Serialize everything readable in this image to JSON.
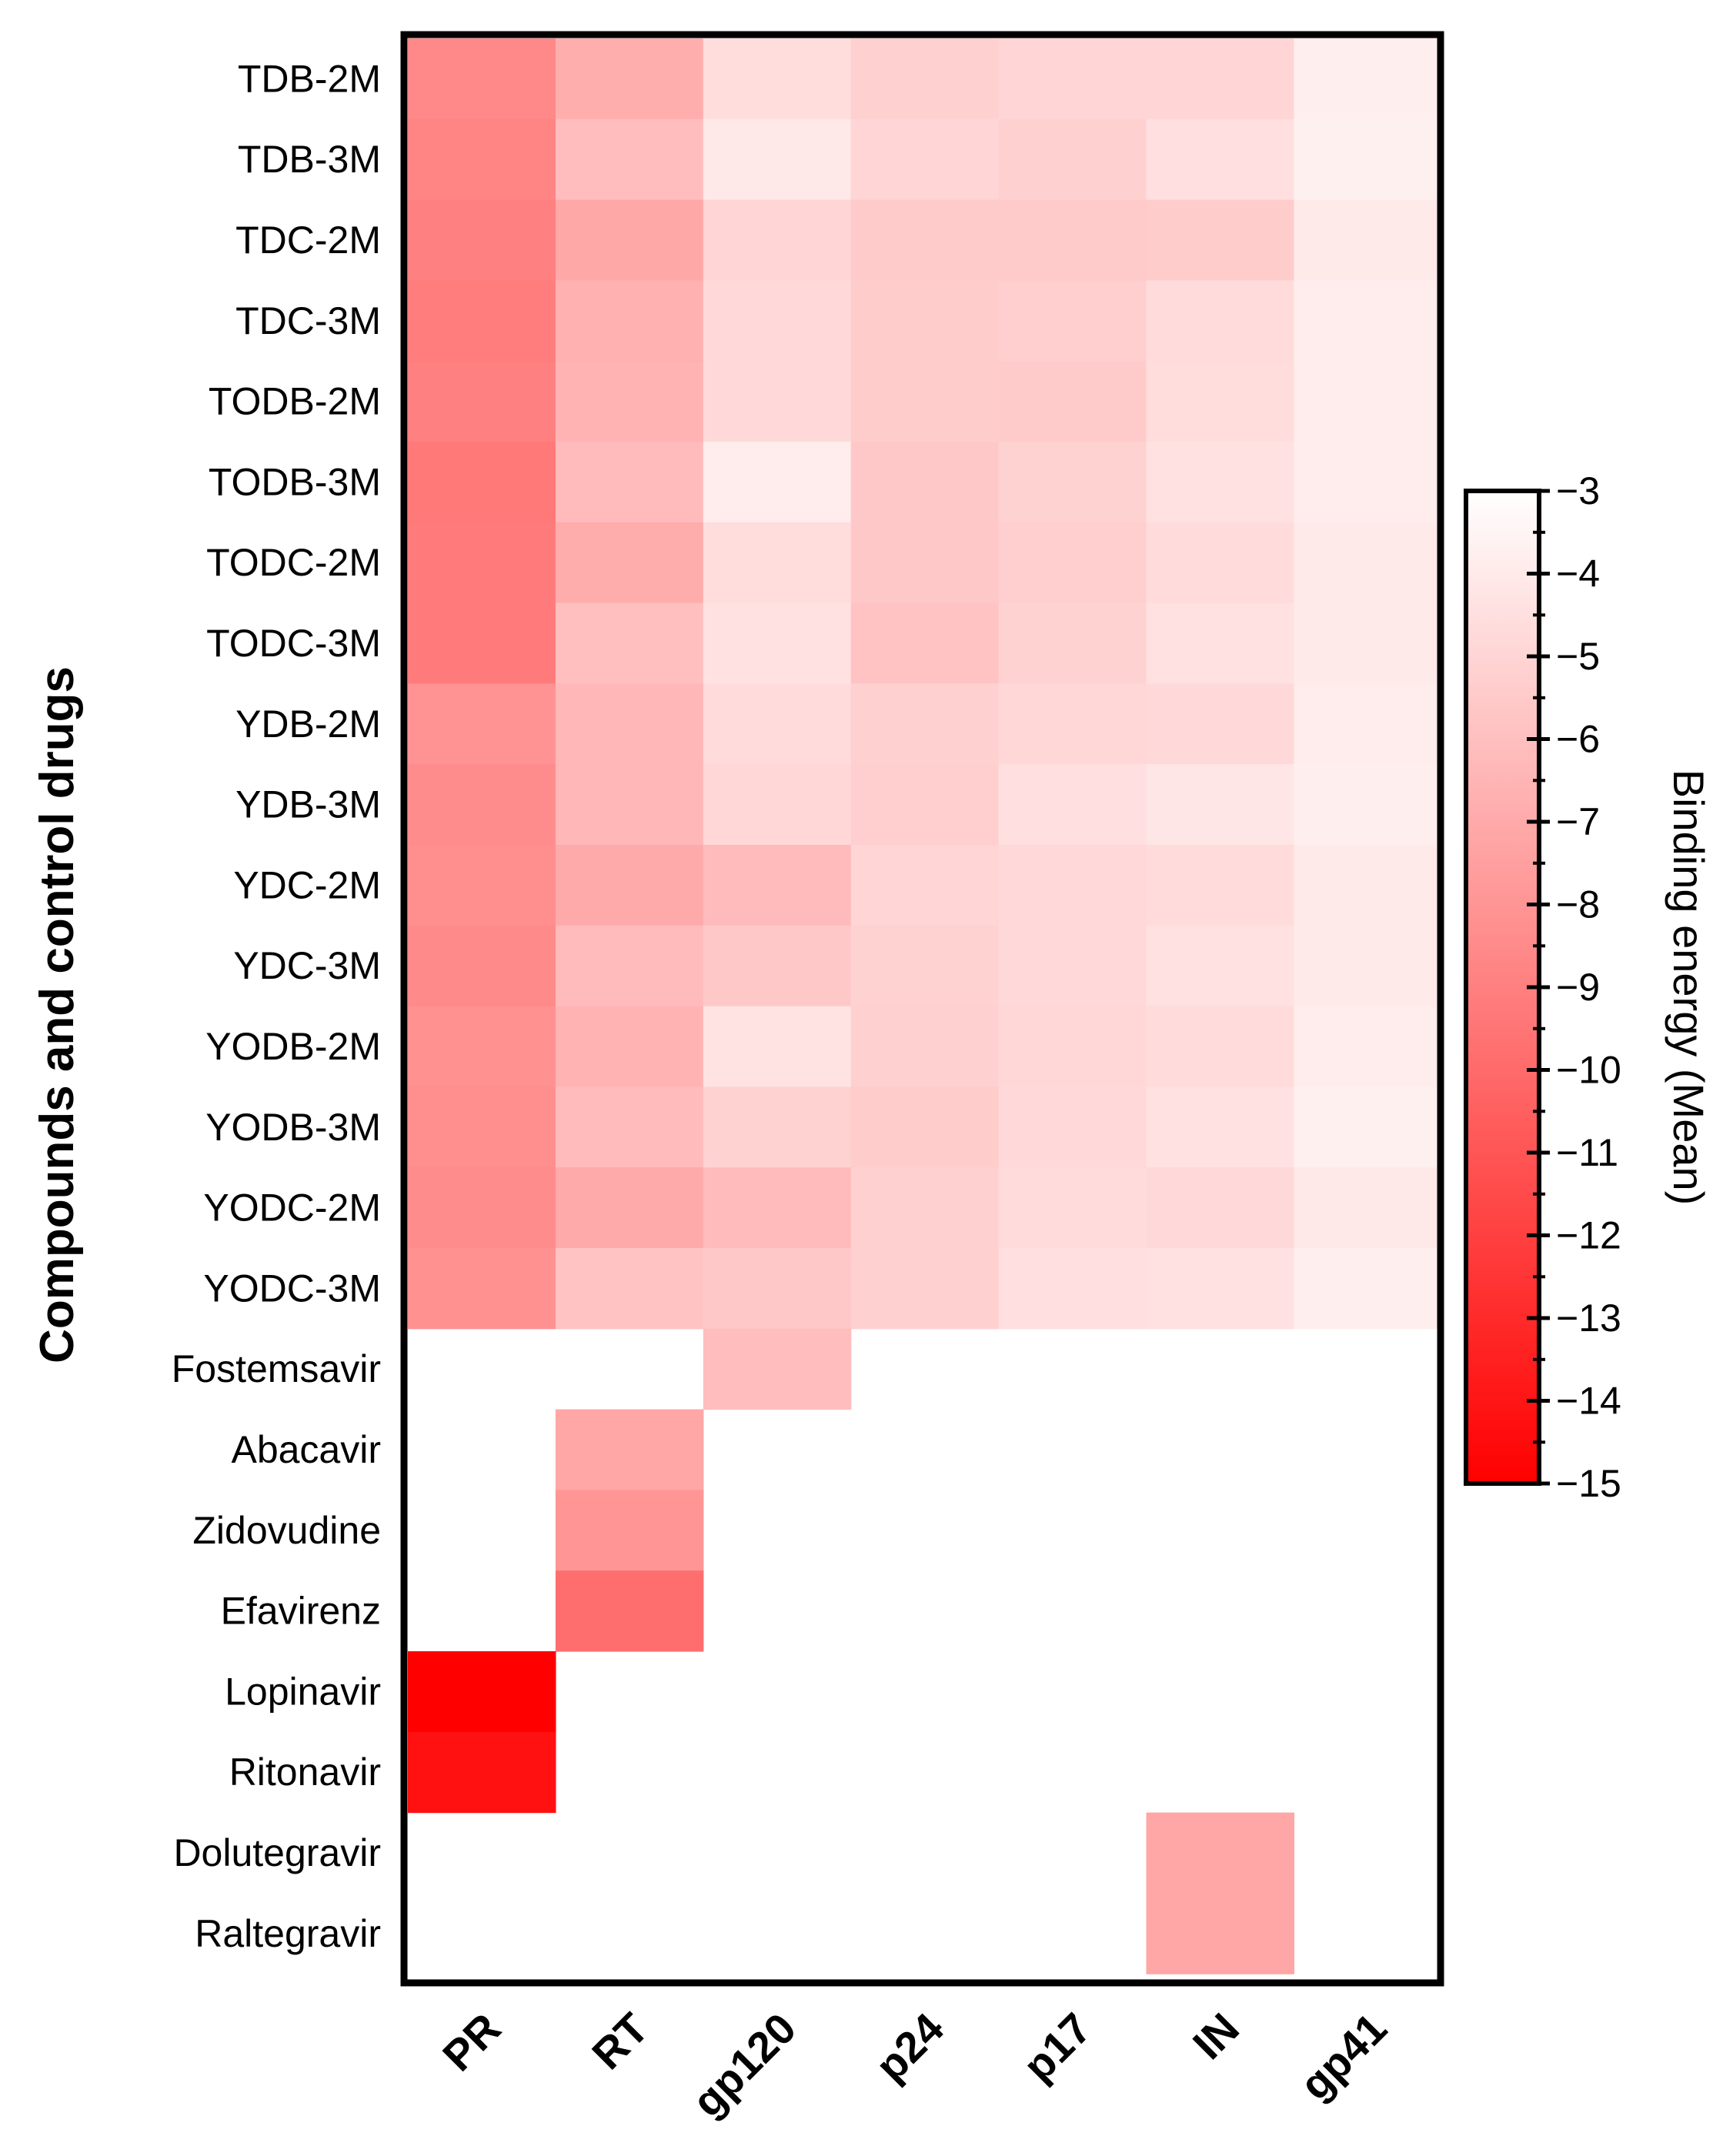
{
  "chart_data": {
    "type": "heatmap",
    "ylabel": "Compounds and control drugs",
    "columns": [
      "PR",
      "RT",
      "gp120",
      "p24",
      "p17",
      "IN",
      "gp41"
    ],
    "rows": [
      "TDB-2M",
      "TDB-3M",
      "TDC-2M",
      "TDC-3M",
      "TODB-2M",
      "TODB-3M",
      "TODC-2M",
      "TODC-3M",
      "YDB-2M",
      "YDB-3M",
      "YDC-2M",
      "YDC-3M",
      "YODB-2M",
      "YODB-3M",
      "YODC-2M",
      "YODC-3M",
      "Fostemsavir",
      "Abacavir",
      "Zidovudine",
      "Efavirenz",
      "Lopinavir",
      "Ritonavir",
      "Dolutegravir",
      "Raltegravir"
    ],
    "values": [
      [
        -8.6,
        -6.8,
        -4.6,
        -5.2,
        -5.0,
        -5.0,
        -3.8
      ],
      [
        -8.8,
        -6.1,
        -4.1,
        -5.0,
        -5.2,
        -4.5,
        -3.7
      ],
      [
        -9.0,
        -7.1,
        -5.0,
        -5.5,
        -5.5,
        -5.4,
        -4.0
      ],
      [
        -9.1,
        -6.7,
        -4.8,
        -5.4,
        -5.3,
        -4.7,
        -3.9
      ],
      [
        -9.0,
        -6.6,
        -4.8,
        -5.4,
        -5.5,
        -4.6,
        -3.9
      ],
      [
        -9.3,
        -6.2,
        -3.9,
        -5.6,
        -5.1,
        -4.4,
        -3.9
      ],
      [
        -9.2,
        -6.9,
        -4.6,
        -5.6,
        -5.3,
        -4.7,
        -4.0
      ],
      [
        -9.2,
        -6.0,
        -4.4,
        -5.8,
        -5.1,
        -4.4,
        -4.0
      ],
      [
        -8.1,
        -6.4,
        -4.7,
        -5.2,
        -4.9,
        -4.8,
        -3.9
      ],
      [
        -8.4,
        -6.4,
        -4.9,
        -5.3,
        -4.5,
        -4.2,
        -3.8
      ],
      [
        -8.3,
        -7.0,
        -6.2,
        -5.0,
        -4.8,
        -4.7,
        -4.0
      ],
      [
        -8.5,
        -6.2,
        -5.6,
        -5.1,
        -4.8,
        -4.4,
        -4.0
      ],
      [
        -8.2,
        -6.6,
        -4.3,
        -5.2,
        -4.9,
        -4.7,
        -3.9
      ],
      [
        -8.3,
        -6.2,
        -5.1,
        -5.4,
        -4.8,
        -4.4,
        -3.7
      ],
      [
        -8.4,
        -7.0,
        -6.2,
        -5.2,
        -4.7,
        -4.8,
        -4.1
      ],
      [
        -8.2,
        -5.8,
        -5.6,
        -5.2,
        -4.5,
        -4.4,
        -3.8
      ],
      [
        null,
        null,
        -6.1,
        null,
        null,
        null,
        null
      ],
      [
        null,
        -7.2,
        null,
        null,
        null,
        null,
        null
      ],
      [
        null,
        -8.0,
        null,
        null,
        null,
        null,
        null
      ],
      [
        null,
        -9.8,
        null,
        null,
        null,
        null,
        null
      ],
      [
        -15.0,
        null,
        null,
        null,
        null,
        null,
        null
      ],
      [
        -14.2,
        null,
        null,
        null,
        null,
        null,
        null
      ],
      [
        null,
        null,
        null,
        null,
        null,
        -7.2,
        null
      ],
      [
        null,
        null,
        null,
        null,
        null,
        -7.2,
        null
      ]
    ],
    "colorbar": {
      "title": "Binding energy (Mean)",
      "range": [
        -15,
        -3
      ],
      "ticks": [
        -3,
        -4,
        -5,
        -6,
        -7,
        -8,
        -9,
        -10,
        -11,
        -12,
        -13,
        -14,
        -15
      ],
      "tick_labels": [
        "−3",
        "−4",
        "−5",
        "−6",
        "−7",
        "−8",
        "−9",
        "−10",
        "−11",
        "−12",
        "−13",
        "−14",
        "−15"
      ],
      "color_low": "#ff0000",
      "color_high": "#ffffff"
    },
    "empty_cell_color": "#ffffff",
    "frame_color": "#000000"
  }
}
